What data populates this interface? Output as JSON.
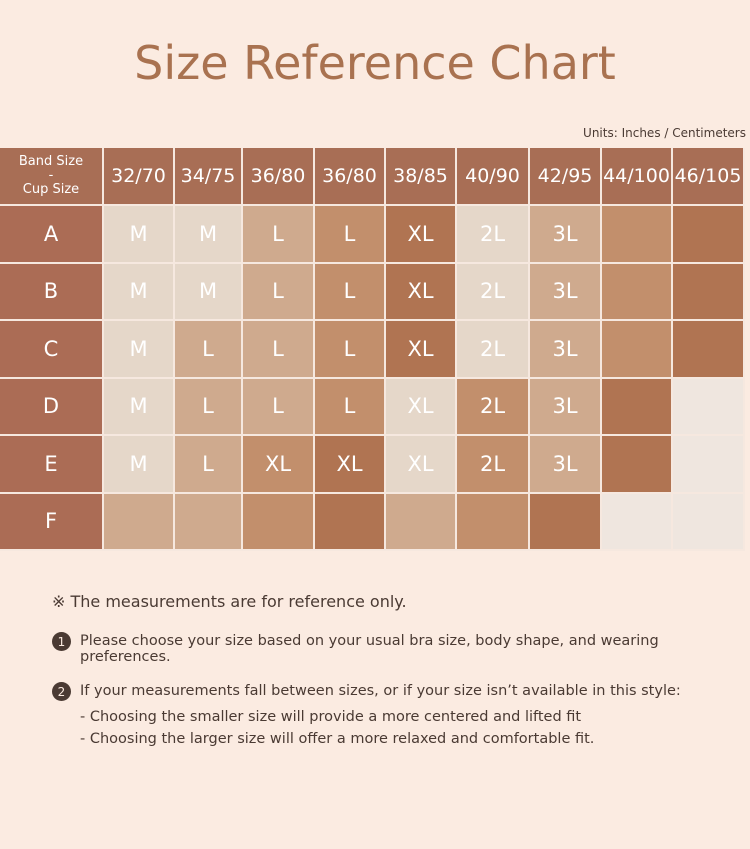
{
  "title": "Size Reference Chart",
  "units": "Units: Inches / Centimeters",
  "table": {
    "corner": [
      "Band Size",
      "-",
      "Cup Size"
    ],
    "bands": [
      "32/70",
      "34/75",
      "36/80",
      "36/80",
      "38/85",
      "40/90",
      "42/95",
      "44/100",
      "46/105"
    ],
    "rows": [
      {
        "cup": "A",
        "cells": [
          "M",
          "M",
          "L",
          "L",
          "XL",
          "2L",
          "3L",
          "",
          ""
        ]
      },
      {
        "cup": "B",
        "cells": [
          "M",
          "M",
          "L",
          "L",
          "XL",
          "2L",
          "3L",
          "",
          ""
        ]
      },
      {
        "cup": "C",
        "cells": [
          "M",
          "L",
          "L",
          "L",
          "XL",
          "2L",
          "3L",
          "",
          ""
        ]
      },
      {
        "cup": "D",
        "cells": [
          "M",
          "L",
          "L",
          "L",
          "XL",
          "2L",
          "3L",
          "",
          ""
        ]
      },
      {
        "cup": "E",
        "cells": [
          "M",
          "L",
          "XL",
          "XL",
          "XL",
          "2L",
          "3L",
          "",
          ""
        ]
      },
      {
        "cup": "F",
        "cells": [
          "",
          "",
          "",
          "",
          "",
          "",
          "",
          "",
          ""
        ]
      }
    ]
  },
  "notes": {
    "main": "※ The measurements are for reference only.",
    "item1_num": "1",
    "item1": "Please choose your size based on your usual bra size, body shape, and wearing preferences.",
    "item2_num": "2",
    "item2": "If your measurements fall between sizes, or if your size isn’t available in this style:",
    "item2_sub1": "- Choosing the smaller size will provide a more centered and lifted fit",
    "item2_sub2": "- Choosing the larger size will offer a more relaxed and comfortable fit."
  },
  "colors": {
    "background": "#fbebe1",
    "title": "#a97250",
    "header": "#a86e55",
    "beige_light": "#e5d7c9",
    "tan": "#cfaa8e",
    "caramel": "#c28f6c",
    "brown": "#b07452",
    "empty": "#efe6df"
  }
}
